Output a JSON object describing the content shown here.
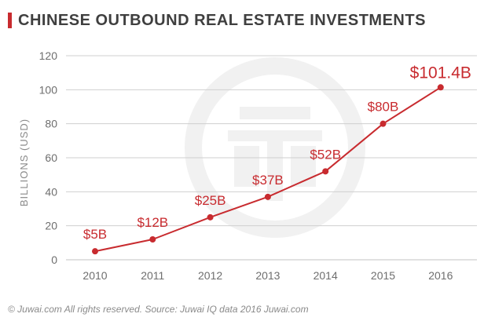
{
  "header": {
    "title": "CHINESE OUTBOUND REAL ESTATE INVESTMENTS"
  },
  "footer": {
    "text": "© Juwai.com All rights reserved. Source: Juwai IQ data 2016 Juwai.com"
  },
  "colors": {
    "accent": "#c82b2f",
    "grid": "#cfcfcf",
    "axis_text": "#6e6e6e",
    "title_text": "#3f3f3f",
    "watermark": "#f1f1f1"
  },
  "watermark": {
    "icon": "juwai-logo-watermark-icon"
  },
  "chart_data": {
    "type": "line",
    "title": "CHINESE OUTBOUND REAL ESTATE INVESTMENTS",
    "xlabel": "",
    "ylabel": "BILLIONS (USD)",
    "categories": [
      "2010",
      "2011",
      "2012",
      "2013",
      "2014",
      "2015",
      "2016"
    ],
    "series": [
      {
        "values": [
          5,
          12,
          25,
          37,
          52,
          80,
          101.4
        ],
        "labels": [
          "$5B",
          "$12B",
          "$25B",
          "$37B",
          "$52B",
          "$80B",
          "$101.4B"
        ]
      }
    ],
    "ylim": [
      0,
      120
    ],
    "yticks": [
      "0",
      "20",
      "40",
      "60",
      "80",
      "100",
      "120"
    ],
    "grid": true,
    "legend": "none"
  }
}
